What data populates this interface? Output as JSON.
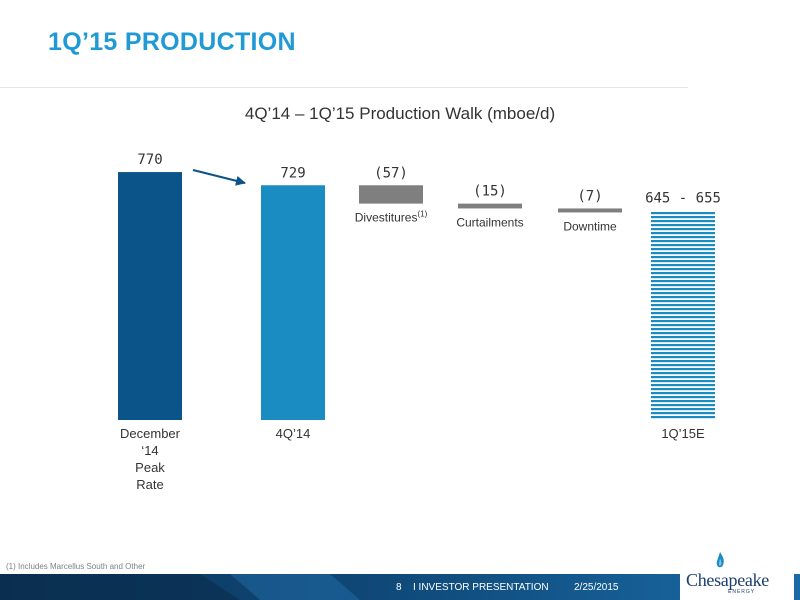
{
  "slide": {
    "title": "1Q’15 PRODUCTION",
    "footnote": "(1)  Includes Marcellus South and Other"
  },
  "footer": {
    "page": "8",
    "section": "I INVESTOR PRESENTATION",
    "date": "2/25/2015"
  },
  "logo": {
    "name": "Chesapeake",
    "sub": "ENERGY"
  },
  "colors": {
    "title": "#1f9ad6",
    "dark_blue": "#0a5489",
    "mid_blue": "#1a8cc2",
    "gray": "#7f7f7f",
    "striped_blue": "#1a8cc2",
    "footer_dark": "#0d3a5e"
  },
  "chart_data": {
    "type": "bar",
    "subtype": "waterfall",
    "title": "4Q’14 – 1Q’15 Production Walk (mboe/d)",
    "ylim": [
      0,
      800
    ],
    "grid": false,
    "legend": "none",
    "bars": [
      {
        "category": "December ‘14 Peak Rate",
        "label_lines": [
          "December",
          "‘14",
          "Peak",
          "Rate"
        ],
        "value": 770,
        "value_label": "770",
        "kind": "total",
        "color": "#0a5489"
      },
      {
        "category": "4Q’14",
        "label_lines": [
          "4Q’14"
        ],
        "value": 729,
        "value_label": "729",
        "kind": "total",
        "color": "#1a8cc2"
      },
      {
        "category": "Divestitures",
        "label_lines": [
          "Divestitures"
        ],
        "superscript": "(1)",
        "value": -57,
        "from": 729,
        "value_label": "(57)",
        "kind": "delta",
        "color": "#7f7f7f"
      },
      {
        "category": "Curtailments",
        "label_lines": [
          "Curtailments"
        ],
        "value": -15,
        "from": 672,
        "value_label": "(15)",
        "kind": "delta",
        "color": "#7f7f7f"
      },
      {
        "category": "Downtime",
        "label_lines": [
          "Downtime"
        ],
        "value": -7,
        "from": 657,
        "value_label": "(7)",
        "kind": "delta",
        "color": "#7f7f7f"
      },
      {
        "category": "1Q’15E",
        "label_lines": [
          "1Q’15E"
        ],
        "value": [
          645,
          655
        ],
        "value_label": "645 - 655",
        "kind": "range-total",
        "color": "#1a8cc2"
      }
    ],
    "annotations": [
      {
        "type": "arrow",
        "from_category": "December ‘14 Peak Rate",
        "to_category": "4Q’14"
      }
    ]
  }
}
